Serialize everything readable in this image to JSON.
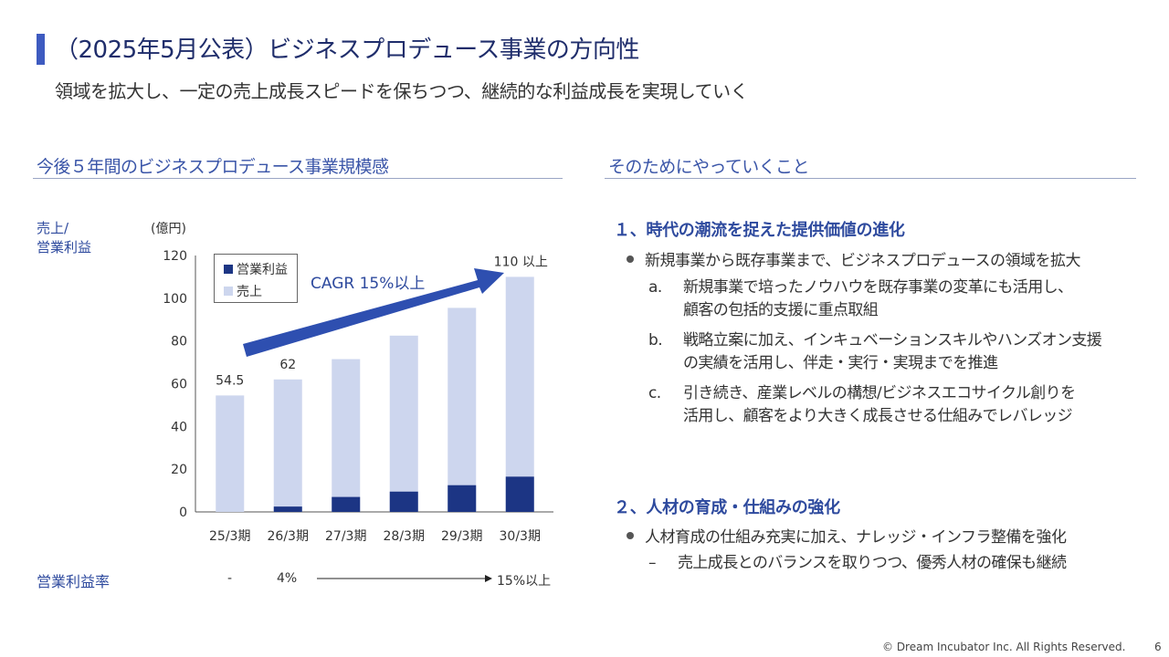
{
  "header": {
    "title": "（2025年5月公表）ビジネスプロデュース事業の方向性",
    "subtitle": "領域を拡大し、一定の売上成長スピードを保ちつつ、継続的な利益成長を実現していく"
  },
  "left_section": {
    "heading": "今後５年間のビジネスプロデュース事業規模感",
    "axis_title_line1": "売上/",
    "axis_title_line2": "営業利益",
    "unit": "(億円)",
    "legend": {
      "profit": "営業利益",
      "revenue": "売上"
    },
    "cagr_label": "CAGR 15%以上",
    "margin_row": {
      "label": "営業利益率",
      "v1": "-",
      "v2": "4%",
      "v3": "15%以上"
    }
  },
  "chart_data": {
    "type": "bar",
    "stacked": false,
    "categories": [
      "25/3期",
      "26/3期",
      "27/3期",
      "28/3期",
      "29/3期",
      "30/3期"
    ],
    "series": [
      {
        "name": "売上",
        "values": [
          54.5,
          62,
          71.5,
          82.5,
          95.5,
          110
        ],
        "color": "#cdd6ee"
      },
      {
        "name": "営業利益",
        "values": [
          0,
          2.5,
          7,
          9.5,
          12.5,
          16.5
        ],
        "color": "#1c3584"
      }
    ],
    "data_labels": [
      "54.5",
      "62",
      "",
      "",
      "",
      "110 以上"
    ],
    "yticks": [
      "0",
      "20",
      "40",
      "60",
      "80",
      "100",
      "120"
    ],
    "ylim": [
      0,
      120
    ],
    "grid": false,
    "legend_position": "top-left"
  },
  "right_section": {
    "heading": "そのためにやっていくこと",
    "item1": {
      "title": "１、時代の潮流を捉えた提供価値の進化",
      "bullet": "新規事業から既存事業まで、ビジネスプロデュースの領域を拡大",
      "subs": [
        {
          "mark": "a.",
          "line1": "新規事業で培ったノウハウを既存事業の変革にも活用し、",
          "line2": "顧客の包括的支援に重点取組"
        },
        {
          "mark": "b.",
          "line1": "戦略立案に加え、インキュベーションスキルやハンズオン支援",
          "line2": "の実績を活用し、伴走・実行・実現までを推進"
        },
        {
          "mark": "c.",
          "line1": "引き続き、産業レベルの構想/ビジネスエコサイクル創りを",
          "line2": "活用し、顧客をより大きく成長させる仕組みでレバレッジ"
        }
      ]
    },
    "item2": {
      "title": "２、人材の育成・仕組みの強化",
      "bullet": "人材育成の仕組み充実に加え、ナレッジ・インフラ整備を強化",
      "sub_mark": "–",
      "sub_text": "売上成長とのバランスを取りつつ、優秀人材の確保も継続"
    }
  },
  "footer": {
    "copyright": "© Dream Incubator Inc. All Rights Reserved.",
    "page": "6"
  },
  "colors": {
    "accent": "#3e5bc0",
    "heading_blue": "#2e4a9e",
    "bar_revenue": "#cdd6ee",
    "bar_profit": "#1c3584",
    "arrow": "#2e4fb0"
  }
}
